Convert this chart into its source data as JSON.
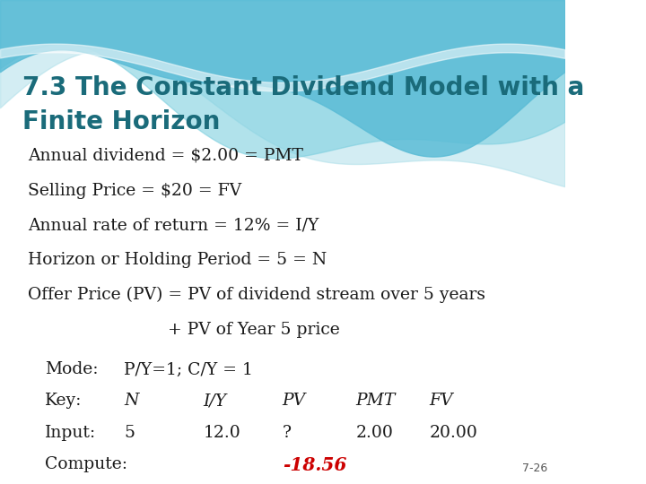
{
  "title_line1": "7.3 The Constant Dividend Model with a",
  "title_line2": "Finite Horizon",
  "title_color": "#1a6b7a",
  "bg_color": "#ffffff",
  "body_lines": [
    "Annual dividend = $2.00 = PMT",
    "Selling Price = $20 = FV",
    "Annual rate of return = 12% = I/Y",
    "Horizon or Holding Period = 5 = N",
    "Offer Price (PV) = PV of dividend stream over 5 years",
    "                          + PV of Year 5 price"
  ],
  "body_color": "#1a1a1a",
  "body_fontsize": 13.5,
  "table_mode_label": "Mode:",
  "table_mode_value": "P/Y=1; C/Y = 1",
  "table_key_label": "Key:",
  "table_key_values": [
    "N",
    "I/Y",
    "PV",
    "PMT",
    "FV"
  ],
  "table_input_label": "Input:",
  "table_input_values": [
    "5",
    "12.0",
    "?",
    "2.00",
    "20.00"
  ],
  "table_compute_label": "Compute:",
  "table_compute_value": "-18.56",
  "compute_color": "#cc0000",
  "table_fontsize": 13.5,
  "slide_number": "7-26",
  "wave_color1": "#5bbcd6",
  "wave_color2": "#7dcfdf",
  "wave_color3": "#a8dde8"
}
